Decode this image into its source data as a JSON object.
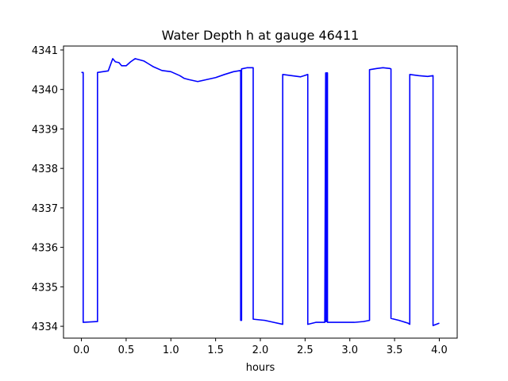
{
  "chart_data": {
    "type": "line",
    "title": "Water Depth h at gauge 46411",
    "xlabel": "hours",
    "ylabel": "",
    "xlim": [
      -0.2,
      4.2
    ],
    "ylim": [
      4333.7,
      4341.1
    ],
    "xticks": [
      0.0,
      0.5,
      1.0,
      1.5,
      2.0,
      2.5,
      3.0,
      3.5,
      4.0
    ],
    "xtick_labels": [
      "0.0",
      "0.5",
      "1.0",
      "1.5",
      "2.0",
      "2.5",
      "3.0",
      "3.5",
      "4.0"
    ],
    "yticks": [
      4334,
      4335,
      4336,
      4337,
      4338,
      4339,
      4340,
      4341
    ],
    "ytick_labels": [
      "4334",
      "4335",
      "4336",
      "4337",
      "4338",
      "4339",
      "4340",
      "4341"
    ],
    "grid": false,
    "series": [
      {
        "color": "#0000ff",
        "x": [
          0.0,
          0.02,
          0.02,
          0.18,
          0.18,
          0.3,
          0.35,
          0.38,
          0.42,
          0.45,
          0.5,
          0.55,
          0.6,
          0.65,
          0.7,
          0.75,
          0.8,
          0.9,
          1.0,
          1.1,
          1.15,
          1.2,
          1.3,
          1.4,
          1.5,
          1.6,
          1.7,
          1.78,
          1.78,
          1.79,
          1.79,
          1.85,
          1.92,
          1.92,
          2.05,
          2.15,
          2.25,
          2.25,
          2.35,
          2.45,
          2.53,
          2.53,
          2.62,
          2.72,
          2.73,
          2.73,
          2.74,
          2.74,
          2.75,
          2.75,
          2.76,
          2.76,
          2.9,
          3.05,
          3.15,
          3.22,
          3.22,
          3.3,
          3.37,
          3.45,
          3.46,
          3.46,
          3.55,
          3.65,
          3.67,
          3.67,
          3.77,
          3.87,
          3.93,
          3.93,
          4.0
        ],
        "y": [
          4340.43,
          4340.43,
          4334.1,
          4334.12,
          4340.43,
          4340.47,
          4340.78,
          4340.7,
          4340.68,
          4340.6,
          4340.6,
          4340.7,
          4340.78,
          4340.75,
          4340.72,
          4340.65,
          4340.58,
          4340.48,
          4340.45,
          4340.35,
          4340.28,
          4340.25,
          4340.2,
          4340.25,
          4340.3,
          4340.38,
          4340.45,
          4340.48,
          4334.15,
          4334.15,
          4340.52,
          4340.55,
          4340.55,
          4334.18,
          4334.15,
          4334.1,
          4334.05,
          4340.38,
          4340.35,
          4340.32,
          4340.38,
          4334.05,
          4334.1,
          4334.1,
          4340.42,
          4334.12,
          4334.12,
          4340.42,
          4340.42,
          4334.1,
          4334.1,
          4334.1,
          4334.1,
          4334.1,
          4334.12,
          4334.15,
          4340.5,
          4340.53,
          4340.55,
          4340.53,
          4340.52,
          4334.2,
          4334.15,
          4334.08,
          4334.05,
          4340.38,
          4340.35,
          4340.33,
          4340.35,
          4334.02,
          4334.08
        ]
      }
    ]
  }
}
